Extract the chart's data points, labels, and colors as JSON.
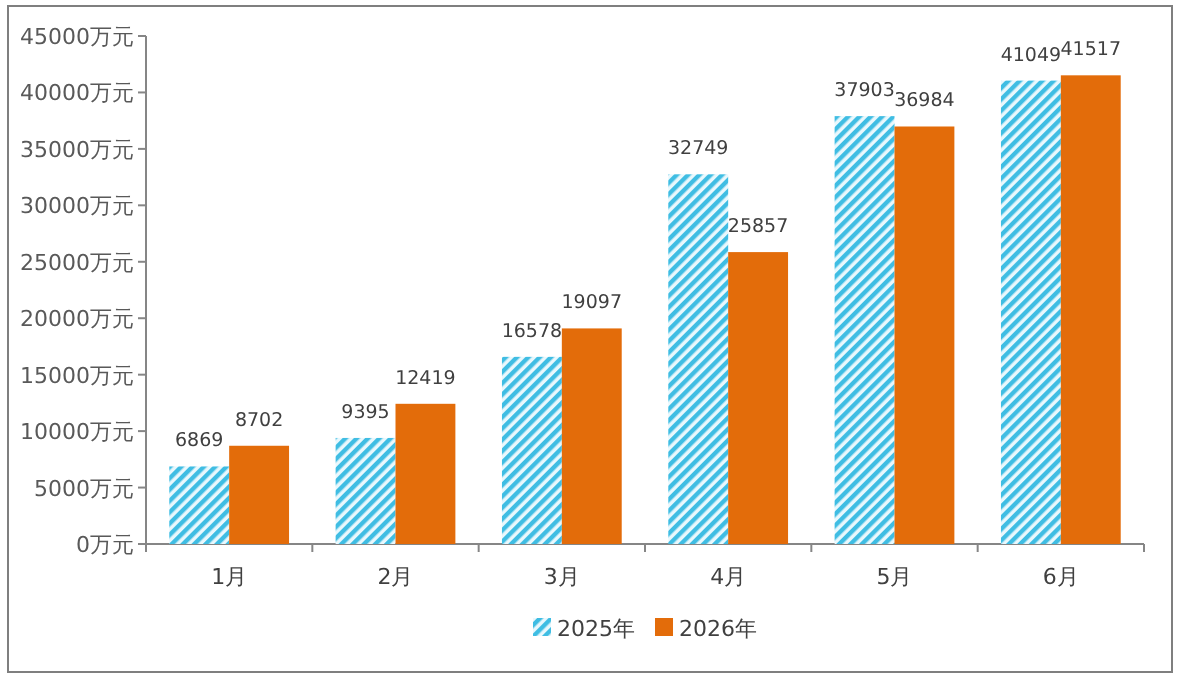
{
  "chart_data": {
    "type": "bar",
    "categories": [
      "1月",
      "2月",
      "3月",
      "4月",
      "5月",
      "6月"
    ],
    "series": [
      {
        "name": "2025年",
        "color": "#3fbde3",
        "values": [
          6869,
          9395,
          16578,
          32749,
          37903,
          41049
        ]
      },
      {
        "name": "2026年",
        "color": "#e36c0a",
        "values": [
          8702,
          12419,
          19097,
          25857,
          36984,
          41517
        ]
      }
    ],
    "ylim": [
      0,
      45000
    ],
    "yticks": [
      {
        "value": 0,
        "label": "0万元"
      },
      {
        "value": 5000,
        "label": "5000万元"
      },
      {
        "value": 10000,
        "label": "10000万元"
      },
      {
        "value": 15000,
        "label": "15000万元"
      },
      {
        "value": 20000,
        "label": "20000万元"
      },
      {
        "value": 25000,
        "label": "25000万元"
      },
      {
        "value": 30000,
        "label": "30000万元"
      },
      {
        "value": 35000,
        "label": "35000万元"
      },
      {
        "value": 40000,
        "label": "40000万元"
      },
      {
        "value": 45000,
        "label": "45000万元"
      }
    ],
    "data_labels": true,
    "legend": "bottom",
    "grid": false
  }
}
